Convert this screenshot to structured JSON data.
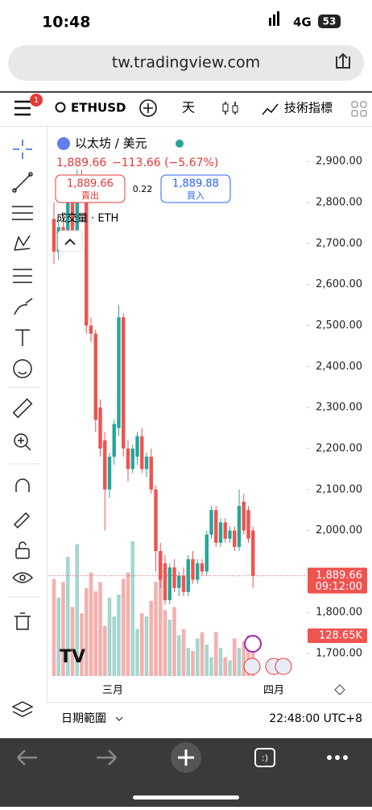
{
  "status": {
    "time": "10:48",
    "network": "4G",
    "battery": "53"
  },
  "browser": {
    "url": "tw.tradingview.com"
  },
  "toolbar": {
    "badge": "1",
    "symbol": "ETHUSD",
    "interval": "天",
    "indicators": "技術指標"
  },
  "legend": {
    "name": "以太坊 / 美元",
    "price": "1,889.66",
    "change": "−113.66 (−5.67%)",
    "sell_price": "1,889.66",
    "sell": "賣出",
    "spread": "0.22",
    "buy_price": "1,889.88",
    "buy": "買入",
    "volume_title": "成交量 · ETH"
  },
  "footer": {
    "range": "日期範圍",
    "clock": "22:48:00 UTC+8"
  },
  "chart_data": {
    "type": "candlestick",
    "ylim": [
      1645,
      2985
    ],
    "yticks": [
      {
        "value": 2900,
        "label": "2,900.00"
      },
      {
        "value": 2800,
        "label": "2,800.00"
      },
      {
        "value": 2700,
        "label": "2,700.00"
      },
      {
        "value": 2600,
        "label": "2,600.00"
      },
      {
        "value": 2500,
        "label": "2,500.00"
      },
      {
        "value": 2400,
        "label": "2,400.00"
      },
      {
        "value": 2300,
        "label": "2,300.00"
      },
      {
        "value": 2200,
        "label": "2,200.00"
      },
      {
        "value": 2100,
        "label": "2,100.00"
      },
      {
        "value": 2000,
        "label": "2,000.00"
      },
      {
        "value": 1800,
        "label": "1,800.00"
      },
      {
        "value": 1700,
        "label": "1,700.00"
      }
    ],
    "x_labels": [
      "三月",
      "四月"
    ],
    "up_color": "#26a69a",
    "down_color": "#ef5350",
    "candles": [
      [
        2760,
        2800,
        2650,
        2680
      ],
      [
        2680,
        2760,
        2660,
        2740
      ],
      [
        2740,
        2770,
        2690,
        2700
      ],
      [
        2700,
        2810,
        2690,
        2800
      ],
      [
        2800,
        2820,
        2710,
        2720
      ],
      [
        2720,
        2880,
        2700,
        2860
      ],
      [
        2860,
        2880,
        2840,
        2850
      ],
      [
        2850,
        2860,
        2480,
        2500
      ],
      [
        2500,
        2520,
        2460,
        2480
      ],
      [
        2480,
        2490,
        2240,
        2270
      ],
      [
        2300,
        2320,
        2180,
        2200
      ],
      [
        2220,
        2240,
        2000,
        2100
      ],
      [
        2100,
        2190,
        2080,
        2180
      ],
      [
        2180,
        2270,
        2160,
        2260
      ],
      [
        2250,
        2550,
        2230,
        2520
      ],
      [
        2520,
        2530,
        2180,
        2200
      ],
      [
        2200,
        2220,
        2120,
        2150
      ],
      [
        2150,
        2210,
        2140,
        2200
      ],
      [
        2180,
        2240,
        2160,
        2230
      ],
      [
        2230,
        2250,
        2140,
        2150
      ],
      [
        2150,
        2190,
        2130,
        2180
      ],
      [
        2180,
        2200,
        2090,
        2100
      ],
      [
        2100,
        2110,
        1900,
        1950
      ],
      [
        1950,
        1970,
        1860,
        1880
      ],
      [
        1920,
        1940,
        1820,
        1830
      ],
      [
        1830,
        1920,
        1820,
        1910
      ],
      [
        1910,
        1930,
        1850,
        1860
      ],
      [
        1860,
        1900,
        1840,
        1890
      ],
      [
        1890,
        1910,
        1840,
        1850
      ],
      [
        1850,
        1940,
        1840,
        1930
      ],
      [
        1930,
        1950,
        1870,
        1880
      ],
      [
        1880,
        1930,
        1870,
        1920
      ],
      [
        1920,
        1930,
        1890,
        1900
      ],
      [
        1900,
        2000,
        1890,
        1990
      ],
      [
        1990,
        2060,
        1980,
        2050
      ],
      [
        2050,
        2060,
        1960,
        1970
      ],
      [
        1970,
        2030,
        1960,
        2020
      ],
      [
        2020,
        2030,
        1970,
        1980
      ],
      [
        1980,
        2010,
        1970,
        2000
      ],
      [
        2000,
        2010,
        1950,
        1960
      ],
      [
        1960,
        2100,
        1950,
        2060
      ],
      [
        2070,
        2090,
        1990,
        2000
      ],
      [
        2050,
        2060,
        1970,
        1980
      ],
      [
        2000,
        2010,
        1860,
        1889.66
      ]
    ],
    "volumes": [
      310,
      250,
      300,
      380,
      220,
      420,
      200,
      280,
      330,
      270,
      300,
      160,
      250,
      190,
      260,
      310,
      330,
      430,
      150,
      200,
      190,
      240,
      300,
      360,
      210,
      180,
      220,
      130,
      150,
      90,
      80,
      120,
      140,
      100,
      60,
      140,
      90,
      60,
      50,
      120,
      90,
      110,
      130,
      128.65
    ],
    "last_price_label": "1,889.66",
    "last_price": 1889.66,
    "countdown": "09:12:00",
    "volume_label": "128.65K",
    "last_volume": 128.65
  }
}
